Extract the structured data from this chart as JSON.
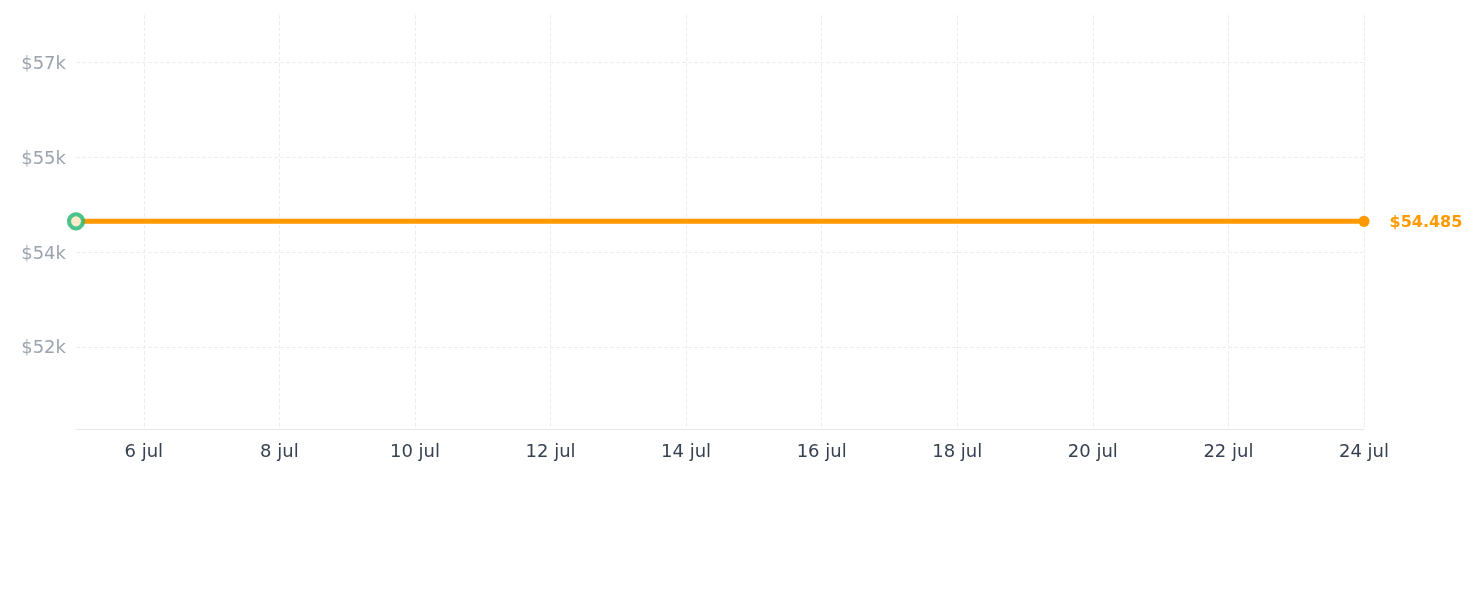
{
  "chart_data": {
    "type": "line",
    "series": [
      {
        "color": "#ff9900",
        "x": [
          "--07-05",
          "--07-24"
        ],
        "values": [
          54485,
          54485
        ],
        "value_labels": [
          null,
          "$54.485"
        ]
      },
      {
        "type": "scatter",
        "color": "#1db56f",
        "x": [
          "--07-05"
        ],
        "values": [
          54485
        ]
      }
    ],
    "xlim": [
      "--07-05",
      "--07-24"
    ],
    "xticks": [
      {
        "value": "--07-06",
        "label": "6 jul"
      },
      {
        "value": "--07-08",
        "label": "8 jul"
      },
      {
        "value": "--07-10",
        "label": "10 jul"
      },
      {
        "value": "--07-12",
        "label": "12 jul"
      },
      {
        "value": "--07-14",
        "label": "14 jul"
      },
      {
        "value": "--07-16",
        "label": "16 jul"
      },
      {
        "value": "--07-18",
        "label": "18 jul"
      },
      {
        "value": "--07-20",
        "label": "20 jul"
      },
      {
        "value": "--07-22",
        "label": "22 jul"
      },
      {
        "value": "--07-24",
        "label": "24 jul"
      }
    ],
    "ylim": [
      51200,
      57750
    ],
    "yticks": [
      {
        "value": 52500,
        "label": "$52k"
      },
      {
        "value": 54000,
        "label": "$54k"
      },
      {
        "value": 55500,
        "label": "$55k"
      },
      {
        "value": 57000,
        "label": "$57k"
      }
    ],
    "grid": true,
    "marker": "circle",
    "line_style": "solid"
  }
}
